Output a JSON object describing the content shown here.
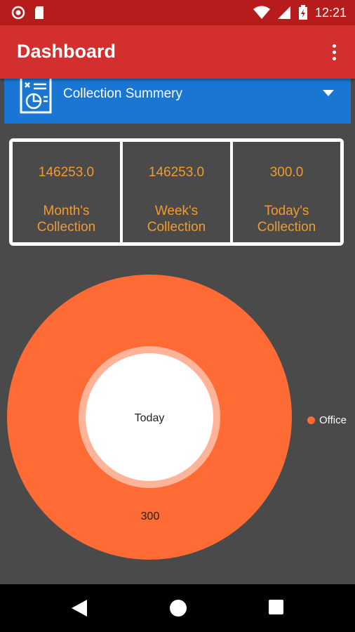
{
  "status_bar": {
    "time": "12:21"
  },
  "app_bar": {
    "title": "Dashboard"
  },
  "selector": {
    "label": "Collection Summery"
  },
  "summary": [
    {
      "value": "146253.0",
      "label_line1": "Month's",
      "label_line2": "Collection"
    },
    {
      "value": "146253.0",
      "label_line1": "Week's",
      "label_line2": "Collection"
    },
    {
      "value": "300.0",
      "label_line1": "Today's",
      "label_line2": "Collection"
    }
  ],
  "chart_data": {
    "type": "pie",
    "center_text": "Today",
    "slices": [
      {
        "label": "Office",
        "value": 300,
        "color": "#ff6b35"
      }
    ],
    "value_labels": [
      "300"
    ],
    "legend": [
      "Office"
    ],
    "legend_position": "right"
  },
  "colors": {
    "status_bar": "#b71c1c",
    "app_bar": "#d32f2f",
    "selector": "#1976d2",
    "accent_text": "#f39a2c",
    "slice": "#ff6b35",
    "background": "#4a4a4a"
  }
}
